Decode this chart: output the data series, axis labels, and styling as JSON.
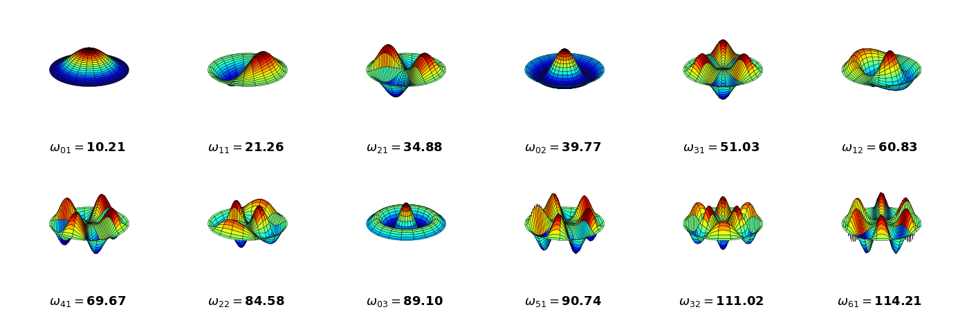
{
  "modes": [
    {
      "label": "\\omega_{01}",
      "value": "10.21",
      "row": 0,
      "col": 0
    },
    {
      "label": "\\omega_{11}",
      "value": "21.26",
      "row": 0,
      "col": 1
    },
    {
      "label": "\\omega_{21}",
      "value": "34.88",
      "row": 0,
      "col": 2
    },
    {
      "label": "\\omega_{02}",
      "value": "39.77",
      "row": 0,
      "col": 3
    },
    {
      "label": "\\omega_{31}",
      "value": "51.03",
      "row": 0,
      "col": 4
    },
    {
      "label": "\\omega_{12}",
      "value": "60.83",
      "row": 0,
      "col": 5
    },
    {
      "label": "\\omega_{41}",
      "value": "69.67",
      "row": 1,
      "col": 0
    },
    {
      "label": "\\omega_{22}",
      "value": "84.58",
      "row": 1,
      "col": 1
    },
    {
      "label": "\\omega_{03}",
      "value": "89.10",
      "row": 1,
      "col": 2
    },
    {
      "label": "\\omega_{51}",
      "value": "90.74",
      "row": 1,
      "col": 3
    },
    {
      "label": "\\omega_{32}",
      "value": "111.02",
      "row": 1,
      "col": 4
    },
    {
      "label": "\\omega_{61}",
      "value": "114.21",
      "row": 1,
      "col": 5
    }
  ],
  "nrows": 2,
  "ncols": 6,
  "bg_color": "#ffffff",
  "text_color": "#000000",
  "label_fontsize": 13,
  "fig_width": 13.98,
  "fig_height": 4.55
}
